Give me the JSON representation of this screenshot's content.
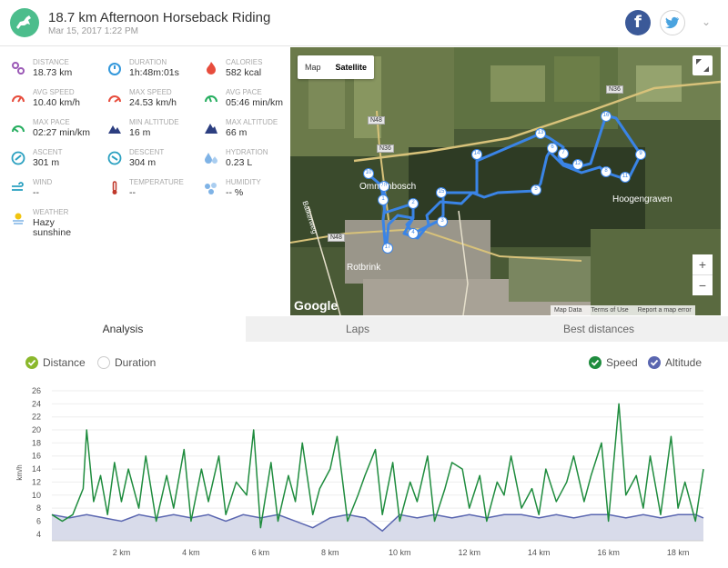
{
  "header": {
    "title": "18.7 km Afternoon Horseback Riding",
    "date": "Mar 15, 2017 1:22 PM",
    "facebook": "f"
  },
  "stats": [
    {
      "label": "DISTANCE",
      "value": "18.73 km",
      "icon": "route-icon",
      "color": "#9b59b6"
    },
    {
      "label": "DURATION",
      "value": "1h:48m:01s",
      "icon": "stopwatch-icon",
      "color": "#3498db"
    },
    {
      "label": "CALORIES",
      "value": "582 kcal",
      "icon": "flame-icon",
      "color": "#e74c3c"
    },
    {
      "label": "AVG SPEED",
      "value": "10.40 km/h",
      "icon": "speedometer-icon",
      "color": "#e74c3c"
    },
    {
      "label": "MAX SPEED",
      "value": "24.53 km/h",
      "icon": "speedometer-icon",
      "color": "#e74c3c"
    },
    {
      "label": "AVG PACE",
      "value": "05:46 min/km",
      "icon": "pace-gauge-icon",
      "color": "#27ae60"
    },
    {
      "label": "MAX PACE",
      "value": "02:27 min/km",
      "icon": "pace-gauge-icon",
      "color": "#27ae60"
    },
    {
      "label": "MIN ALTITUDE",
      "value": "16 m",
      "icon": "mountain-icon",
      "color": "#2c3e80"
    },
    {
      "label": "MAX ALTITUDE",
      "value": "66 m",
      "icon": "mountain-icon",
      "color": "#2c3e80"
    },
    {
      "label": "ASCENT",
      "value": "301 m",
      "icon": "ascent-icon",
      "color": "#2aa0c0"
    },
    {
      "label": "DESCENT",
      "value": "304 m",
      "icon": "descent-icon",
      "color": "#2aa0c0"
    },
    {
      "label": "HYDRATION",
      "value": "0.23 L",
      "icon": "water-drops-icon",
      "color": "#7fb3e6"
    },
    {
      "label": "WIND",
      "value": "--",
      "icon": "wind-icon",
      "color": "#2aa0c0"
    },
    {
      "label": "TEMPERATURE",
      "value": "--",
      "icon": "thermometer-icon",
      "color": "#c0392b"
    },
    {
      "label": "HUMIDITY",
      "value": "-- %",
      "icon": "humidity-icon",
      "color": "#7fb3e6"
    },
    {
      "label": "WEATHER",
      "value": "Hazy",
      "value2": "sunshine",
      "icon": "sun-haze-icon",
      "color": "#f1c40f"
    }
  ],
  "map": {
    "toggle_map": "Map",
    "toggle_satellite": "Satellite",
    "zoom_in": "+",
    "zoom_out": "−",
    "google": "Google",
    "footer": [
      "Map Data",
      "Terms of Use",
      "Report a map error"
    ],
    "labels": [
      {
        "text": "N36"
      },
      {
        "text": "N36"
      },
      {
        "text": "N48"
      },
      {
        "text": "N48"
      },
      {
        "text": "Ommenbosch"
      },
      {
        "text": "Hoogengraven"
      },
      {
        "text": "Rotbrink"
      },
      {
        "text": "Balkerweg"
      }
    ],
    "markers": [
      "1",
      "2",
      "3",
      "4",
      "5",
      "6",
      "7",
      "8",
      "9",
      "10",
      "11",
      "12",
      "13",
      "14",
      "15",
      "16",
      "17",
      "18"
    ]
  },
  "tabs": [
    {
      "label": "Analysis",
      "active": true
    },
    {
      "label": "Laps",
      "active": false
    },
    {
      "label": "Best distances",
      "active": false
    }
  ],
  "legend": {
    "distance": "Distance",
    "duration": "Duration",
    "speed": "Speed",
    "altitude": "Altitude",
    "color_distance": "#8bb82c",
    "color_speed": "#1f8c3e",
    "color_altitude": "#5a66b0"
  },
  "chart_data": {
    "type": "line",
    "ylabel": "km/h",
    "ylim": [
      3,
      26
    ],
    "yticks": [
      4,
      6,
      8,
      10,
      12,
      14,
      16,
      18,
      20,
      22,
      24,
      26
    ],
    "xlim": [
      0,
      18.73
    ],
    "xticks": [
      2,
      4,
      6,
      8,
      10,
      12,
      14,
      16,
      18
    ],
    "xtick_labels": [
      "2 km",
      "4 km",
      "6 km",
      "8 km",
      "10 km",
      "12 km",
      "14 km",
      "16 km",
      "18 km"
    ],
    "series": [
      {
        "name": "Speed",
        "color": "#1f8c3e",
        "x": [
          0,
          0.3,
          0.6,
          0.9,
          1.0,
          1.2,
          1.4,
          1.6,
          1.8,
          2.0,
          2.2,
          2.5,
          2.7,
          3.0,
          3.3,
          3.5,
          3.8,
          4.0,
          4.3,
          4.5,
          4.8,
          5.0,
          5.3,
          5.6,
          5.8,
          6.0,
          6.3,
          6.5,
          6.8,
          7.0,
          7.2,
          7.5,
          7.7,
          8.0,
          8.2,
          8.5,
          8.8,
          9.0,
          9.3,
          9.5,
          9.8,
          10.0,
          10.3,
          10.5,
          10.8,
          11.0,
          11.3,
          11.5,
          11.8,
          12.0,
          12.3,
          12.5,
          12.8,
          13.0,
          13.2,
          13.5,
          13.8,
          14.0,
          14.2,
          14.5,
          14.8,
          15.0,
          15.3,
          15.5,
          15.8,
          16.0,
          16.3,
          16.5,
          16.8,
          17.0,
          17.2,
          17.5,
          17.8,
          18.0,
          18.2,
          18.5,
          18.73
        ],
        "values": [
          7,
          6,
          7,
          11,
          20,
          9,
          13,
          7,
          15,
          9,
          14,
          8,
          16,
          6,
          13,
          8,
          17,
          6,
          14,
          9,
          16,
          7,
          12,
          10,
          20,
          5,
          15,
          6,
          13,
          9,
          18,
          7,
          11,
          14,
          19,
          6,
          10,
          13,
          17,
          7,
          15,
          6,
          12,
          9,
          16,
          6,
          11,
          15,
          14,
          8,
          13,
          6,
          12,
          10,
          16,
          8,
          11,
          7,
          14,
          9,
          12,
          16,
          9,
          13,
          18,
          6,
          24,
          10,
          13,
          8,
          16,
          7,
          19,
          8,
          12,
          6,
          14
        ]
      },
      {
        "name": "Altitude",
        "color": "#5a66b0",
        "x": [
          0,
          0.5,
          1.0,
          1.5,
          2.0,
          2.5,
          3.0,
          3.5,
          4.0,
          4.5,
          5.0,
          5.5,
          6.0,
          6.5,
          7.0,
          7.5,
          8.0,
          8.5,
          9.0,
          9.5,
          10.0,
          10.5,
          11.0,
          11.5,
          12.0,
          12.5,
          13.0,
          13.5,
          14.0,
          14.5,
          15.0,
          15.5,
          16.0,
          16.5,
          17.0,
          17.5,
          18.0,
          18.5,
          18.73
        ],
        "values": [
          7,
          6.5,
          7,
          6.5,
          6,
          7,
          6.5,
          7,
          6.5,
          7,
          6,
          7,
          6.5,
          7,
          6,
          5,
          6.5,
          7,
          6.5,
          4.5,
          7,
          6.5,
          7,
          6.5,
          7,
          6.5,
          7,
          7,
          6.5,
          7,
          6.5,
          7,
          7,
          6.5,
          7,
          6.5,
          7,
          7,
          6.5
        ]
      }
    ]
  }
}
